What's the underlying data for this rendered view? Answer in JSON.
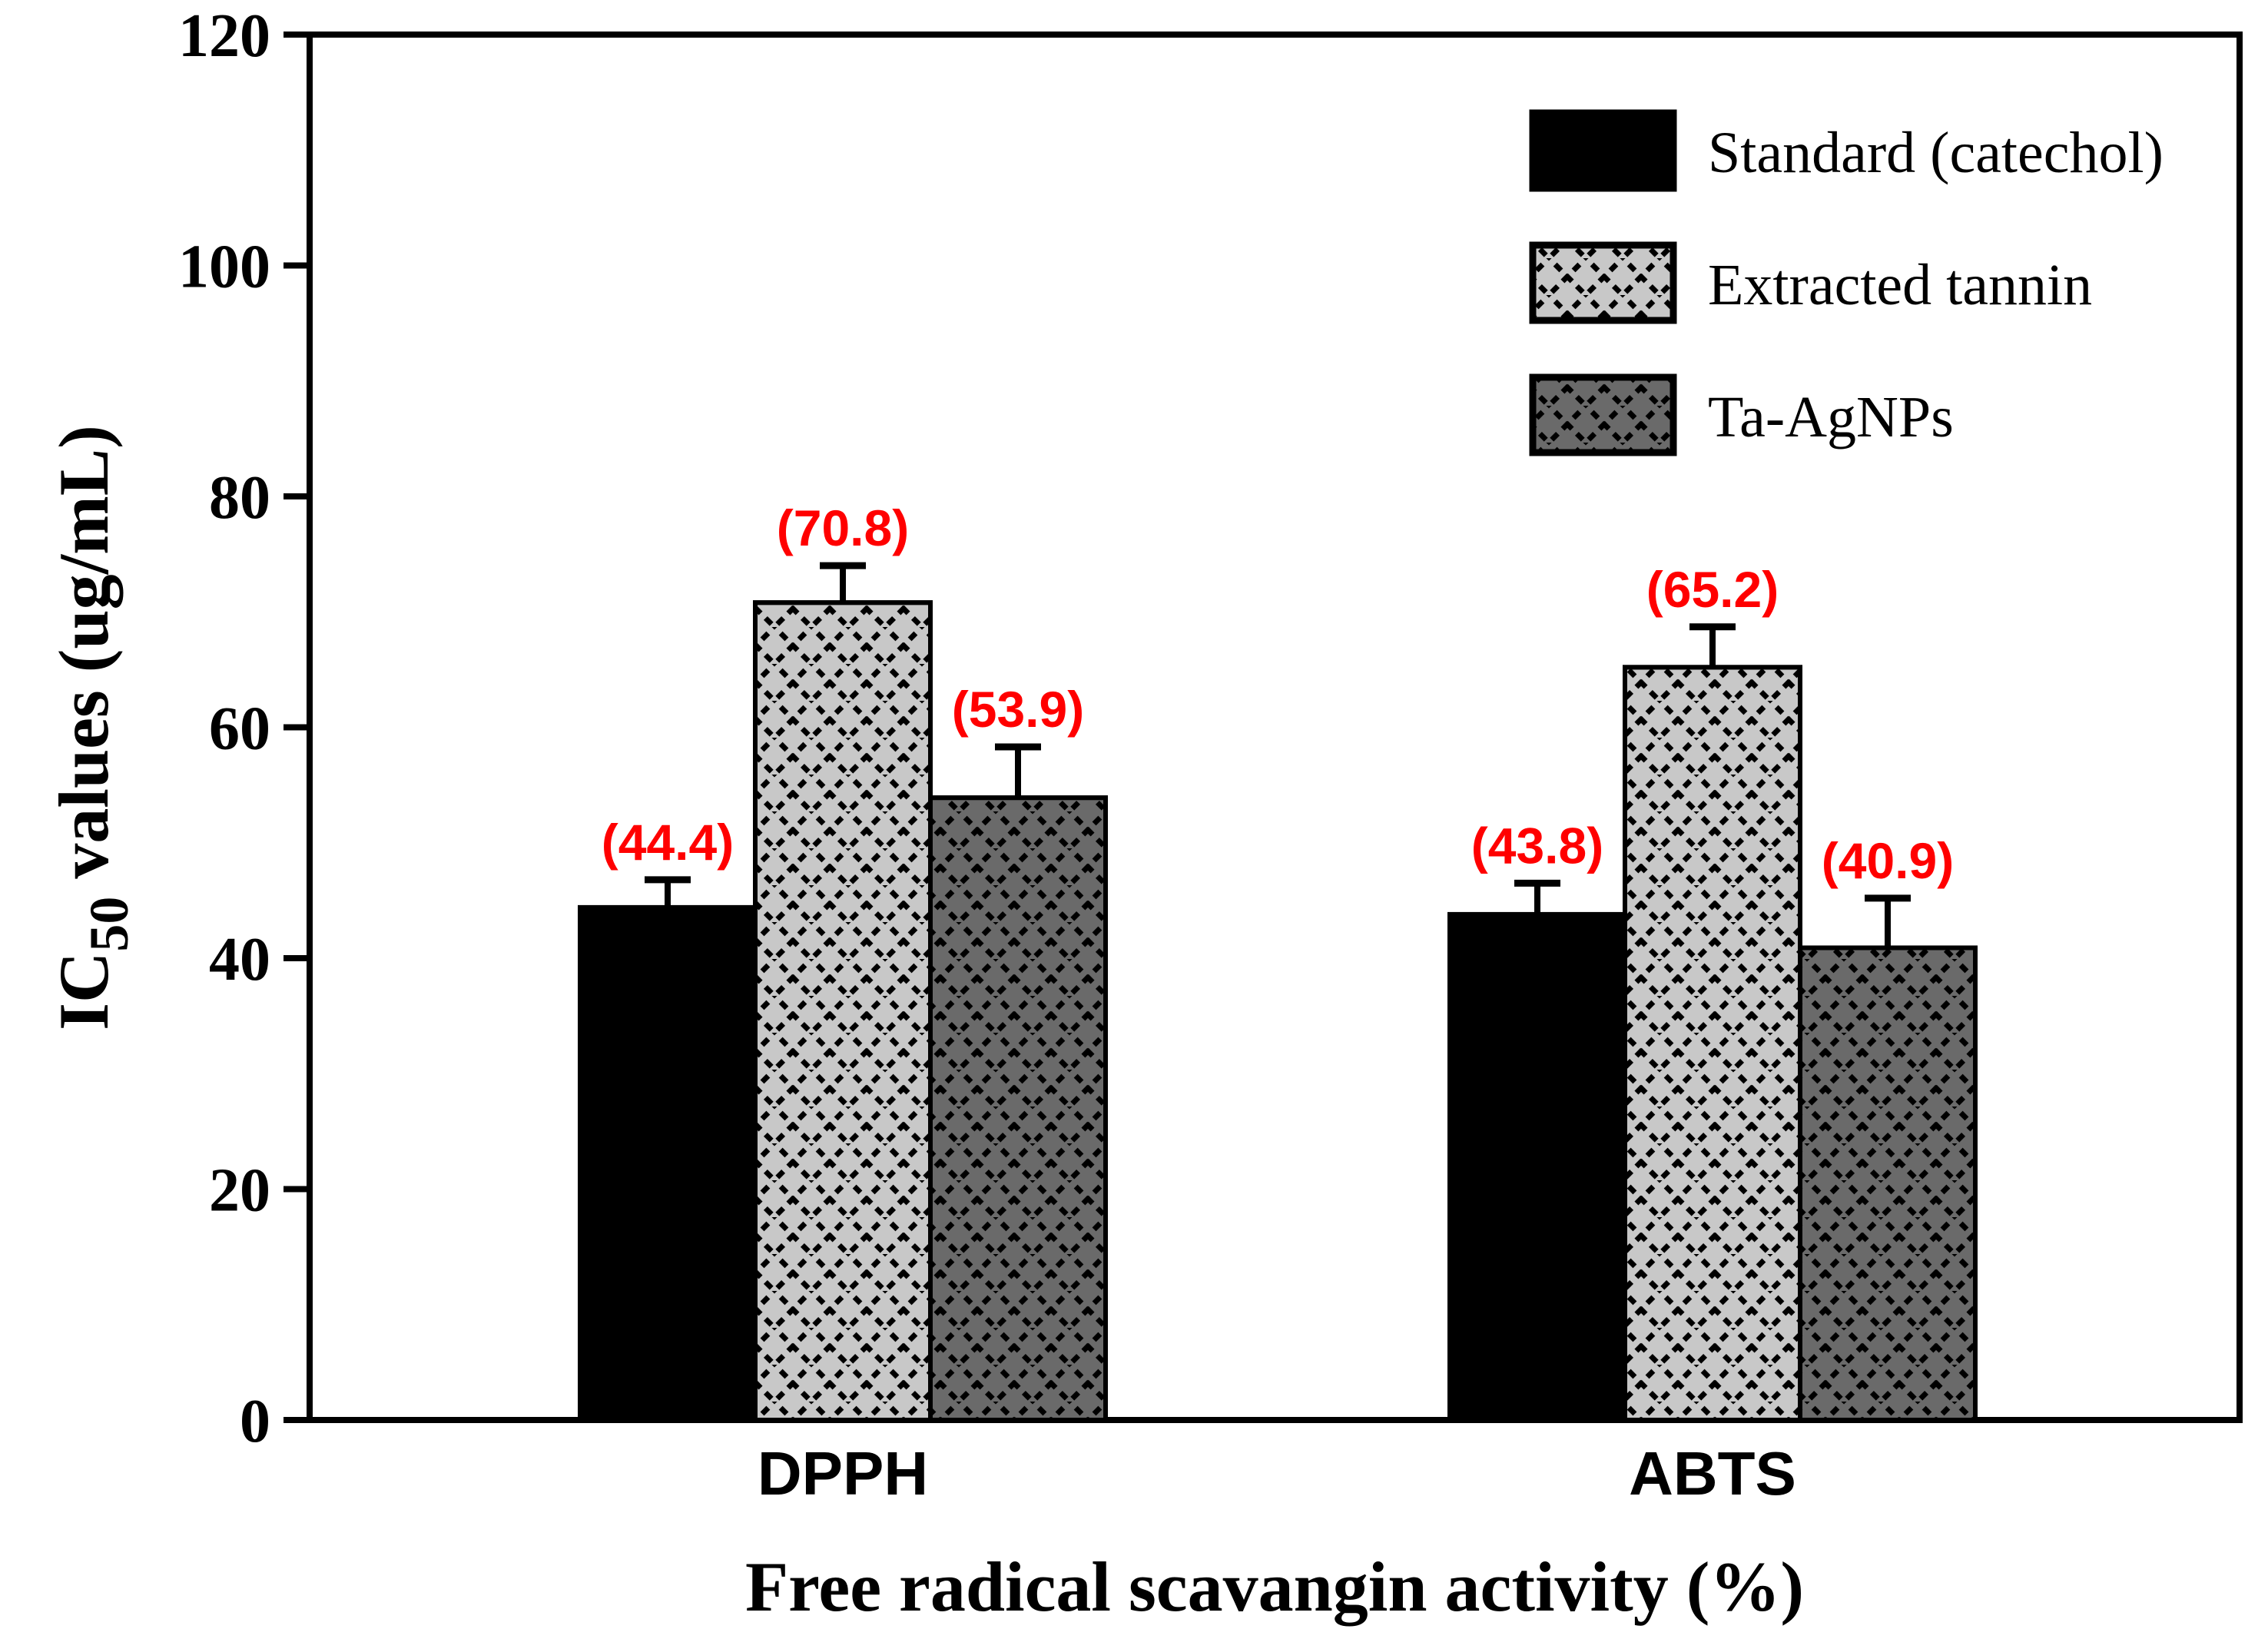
{
  "figure": {
    "background": "#ffffff",
    "frame_color": "#000000"
  },
  "y_axis": {
    "title_prefix": "IC",
    "title_sub": "50",
    "title_suffix": " values (ug/mL)",
    "tick_labels": [
      "0",
      "20",
      "40",
      "60",
      "80",
      "100",
      "120"
    ]
  },
  "x_axis": {
    "title": "Free radical scavangin activity (%)"
  },
  "legend": {
    "position": "top-right",
    "items": [
      {
        "label": "Standard (catechol)"
      },
      {
        "label": "Extracted tannin"
      },
      {
        "label": "Ta-AgNPs"
      }
    ]
  },
  "chart_data": {
    "type": "bar",
    "title": "",
    "xlabel": "Free radical scavangin activity (%)",
    "ylabel": "IC50 values (ug/mL)",
    "ylim": [
      0,
      120
    ],
    "yticks": [
      0,
      20,
      40,
      60,
      80,
      100,
      120
    ],
    "grid": false,
    "legend_position": "top-right",
    "categories": [
      "DPPH",
      "ABTS"
    ],
    "series": [
      {
        "name": "Standard (catechol)",
        "values": [
          44.4,
          43.8
        ],
        "errors": [
          2.4,
          2.7
        ],
        "labels": [
          "(44.4)",
          "(43.8)"
        ],
        "fill": "#000000",
        "pattern": false
      },
      {
        "name": "Extracted tannin",
        "values": [
          70.8,
          65.2
        ],
        "errors": [
          3.2,
          3.5
        ],
        "labels": [
          "(70.8)",
          "(65.2)"
        ],
        "fill": "#c8c8c8",
        "pattern": true
      },
      {
        "name": "Ta-AgNPs",
        "values": [
          53.9,
          40.9
        ],
        "errors": [
          4.4,
          4.3
        ],
        "labels": [
          "(53.9)",
          "(40.9)"
        ],
        "fill": "#6a6a6a",
        "pattern": true
      }
    ],
    "value_label_color": "#ff0000",
    "error_bars": "upper"
  }
}
